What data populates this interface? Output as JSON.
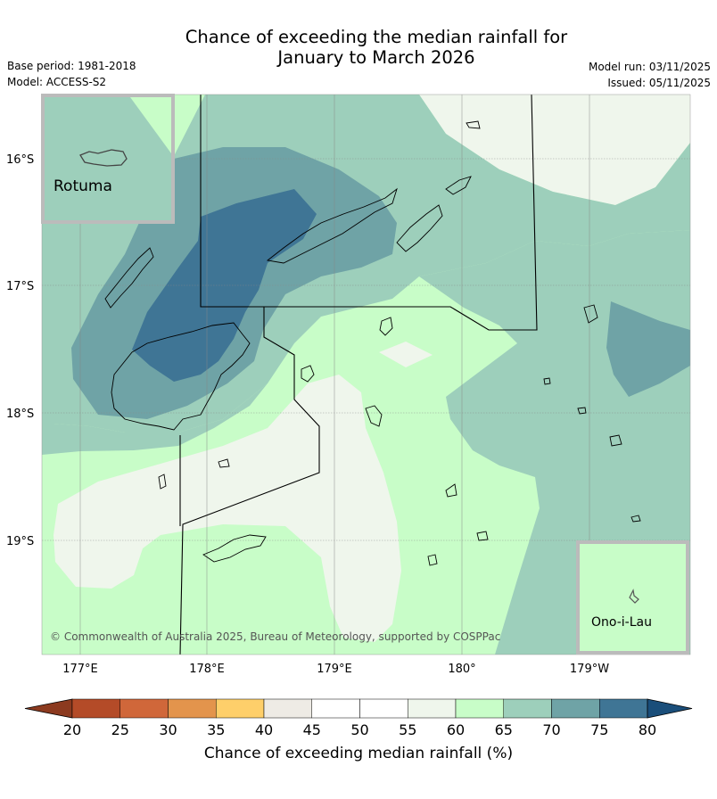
{
  "title_line1": "Chance of exceeding the median rainfall for",
  "title_line2": "January to March 2026",
  "base_period": "Base period: 1981-2018",
  "model": "Model: ACCESS-S2",
  "model_run": "Model run: 03/11/2025",
  "issued": "Issued: 05/11/2025",
  "copyright": "© Commonwealth of Australia 2025, Bureau of Meteorology, supported by COSPPac",
  "inset_rotuma_label": "Rotuma",
  "inset_onoilau_label": "Ono-i-Lau",
  "lat_labels": [
    "16°S",
    "17°S",
    "18°S",
    "19°S"
  ],
  "lon_labels": [
    "177°E",
    "178°E",
    "179°E",
    "180°",
    "179°W"
  ],
  "colorbar": {
    "label": "Chance of exceeding median rainfall (%)",
    "ticks": [
      "20",
      "25",
      "30",
      "35",
      "40",
      "45",
      "50",
      "55",
      "60",
      "65",
      "70",
      "75",
      "80"
    ],
    "colors": [
      "#8c3a1f",
      "#b44b28",
      "#d0673a",
      "#e3944c",
      "#fecf6a",
      "#eeebe5",
      "#ffffff",
      "#ffffff",
      "#eff6ec",
      "#c8fdc8",
      "#9dcfbb",
      "#6fa3a6",
      "#3f7595",
      "#1a4e7a"
    ]
  },
  "colors": {
    "c55_60": "#eff6ec",
    "c60_65": "#c8fdc8",
    "c65_70": "#9dcfbb",
    "c70_75": "#6fa3a6",
    "c75_80": "#3f7595",
    "inset_frame": "#bbbbbb"
  }
}
